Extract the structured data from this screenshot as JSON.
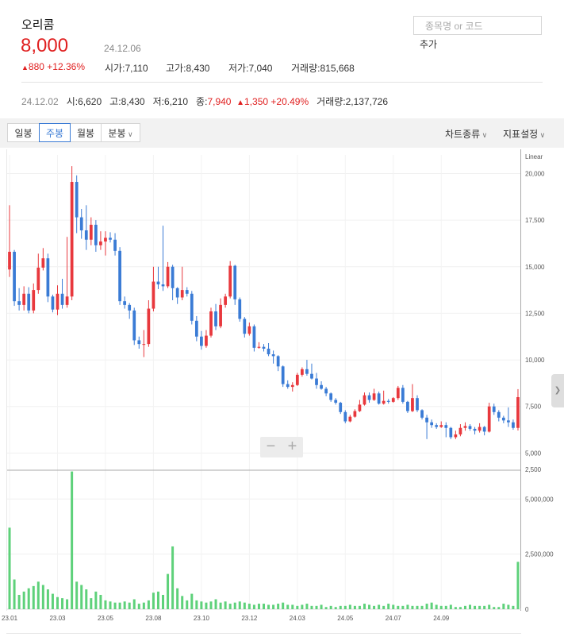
{
  "header": {
    "stock_name": "오리콤",
    "price": "8,000",
    "price_date": "24.12.06",
    "change_arrow": "▲",
    "change": "880 +12.36%",
    "stats": [
      {
        "label": "시가",
        "value": "7,110"
      },
      {
        "label": "고가",
        "value": "8,430"
      },
      {
        "label": "저가",
        "value": "7,040"
      },
      {
        "label": "거래량",
        "value": "815,668"
      }
    ]
  },
  "search": {
    "placeholder": "종목명 or 코드",
    "add_label": "추가"
  },
  "prev_day": {
    "date": "24.12.02",
    "open_label": "시",
    "open": "6,620",
    "high_label": "고",
    "high": "8,430",
    "low_label": "저",
    "low": "6,210",
    "close_label": "종",
    "close": "7,940",
    "change_arrow": "▲",
    "change": "1,350 +20.49%",
    "volume_label": "거래량",
    "volume": "2,137,726"
  },
  "toolbar": {
    "tabs": [
      "일봉",
      "주봉",
      "월봉",
      "분봉"
    ],
    "active_tab": "주봉",
    "chart_type": "차트종류",
    "indicator": "지표설정"
  },
  "zoom": {
    "minus": "−",
    "plus": "+"
  },
  "colors": {
    "up": "#e8383d",
    "down": "#3a7bd5",
    "volume": "#5ed17a",
    "accent": "#3a7bd5",
    "price_text": "#e02020"
  },
  "chart_data": {
    "type": "candlestick",
    "period": "weekly",
    "scale_label": "Linear",
    "price_axis": {
      "ticks": [
        5000,
        7500,
        10000,
        12500,
        15000,
        17500,
        20000
      ],
      "labels": [
        "5,000",
        "7,500",
        "10,000",
        "12,500",
        "15,000",
        "17,500",
        "20,000"
      ],
      "range": [
        4250,
        21000
      ]
    },
    "volume_axis": {
      "ticks": [
        0,
        2500000,
        5000000
      ],
      "labels": [
        "0",
        "2,500,000",
        "5,000,000"
      ],
      "top_label": "2,500",
      "range": [
        0,
        6200000
      ]
    },
    "x_labels": [
      "23.01",
      "23.03",
      "23.05",
      "23.08",
      "23.10",
      "23.12",
      "24.03",
      "24.05",
      "24.07",
      "24.09"
    ],
    "x_label_index": [
      0,
      10,
      20,
      30,
      40,
      50,
      60,
      70,
      80,
      90
    ],
    "candles": [
      [
        14850,
        15800,
        18300,
        14450
      ],
      [
        15800,
        13150,
        15900,
        12900
      ],
      [
        13150,
        12950,
        13850,
        12650
      ],
      [
        12950,
        13550,
        13950,
        12650
      ],
      [
        13550,
        12650,
        13900,
        12500
      ],
      [
        12650,
        13750,
        14100,
        12500
      ],
      [
        13750,
        14950,
        15700,
        13550
      ],
      [
        14950,
        15450,
        16000,
        14800
      ],
      [
        15450,
        13400,
        15700,
        13100
      ],
      [
        13400,
        12700,
        13500,
        12550
      ],
      [
        12700,
        13550,
        14000,
        12400
      ],
      [
        13550,
        12950,
        14350,
        12750
      ],
      [
        12950,
        13400,
        16600,
        12800
      ],
      [
        13400,
        19550,
        20400,
        13200
      ],
      [
        19550,
        17650,
        19900,
        16800
      ],
      [
        17650,
        16950,
        18100,
        16500
      ],
      [
        16950,
        16450,
        18300,
        15900
      ],
      [
        16450,
        17250,
        17650,
        16150
      ],
      [
        17250,
        16150,
        17500,
        15800
      ],
      [
        16150,
        16350,
        16900,
        15900
      ],
      [
        16350,
        16550,
        16900,
        15600
      ],
      [
        16550,
        16450,
        16850,
        16300
      ],
      [
        16450,
        15850,
        16800,
        15600
      ],
      [
        15850,
        13150,
        16050,
        12950
      ],
      [
        13150,
        12950,
        13400,
        12750
      ],
      [
        12950,
        12650,
        13050,
        12200
      ],
      [
        12650,
        11050,
        12800,
        10800
      ],
      [
        11050,
        10850,
        11250,
        10600
      ],
      [
        10850,
        10850,
        11600,
        10150
      ],
      [
        10850,
        12750,
        13200,
        10700
      ],
      [
        12750,
        14200,
        15000,
        12600
      ],
      [
        14200,
        14050,
        15000,
        13800
      ],
      [
        14050,
        13950,
        17200,
        13700
      ],
      [
        13950,
        15000,
        15250,
        13850
      ],
      [
        15000,
        13850,
        15100,
        13200
      ],
      [
        13850,
        13350,
        13900,
        13000
      ],
      [
        13350,
        13750,
        15000,
        13200
      ],
      [
        13750,
        13550,
        13900,
        13400
      ],
      [
        13550,
        12100,
        13700,
        11900
      ],
      [
        12100,
        11250,
        12350,
        11000
      ],
      [
        11250,
        10750,
        11550,
        10550
      ],
      [
        10750,
        11300,
        11600,
        10650
      ],
      [
        11300,
        12600,
        12800,
        11200
      ],
      [
        12600,
        11800,
        13000,
        11600
      ],
      [
        11800,
        12950,
        13300,
        11700
      ],
      [
        12950,
        13400,
        13550,
        12800
      ],
      [
        13400,
        15050,
        15300,
        13300
      ],
      [
        15050,
        13250,
        15100,
        12950
      ],
      [
        13250,
        12200,
        13350,
        12050
      ],
      [
        12200,
        11400,
        12300,
        11200
      ],
      [
        11400,
        11800,
        12000,
        11300
      ],
      [
        11800,
        10650,
        11900,
        10450
      ],
      [
        10650,
        10700,
        10950,
        10600
      ],
      [
        10700,
        10600,
        10850,
        10450
      ],
      [
        10600,
        10300,
        10900,
        10200
      ],
      [
        10300,
        10200,
        10500,
        9800
      ],
      [
        10200,
        9650,
        10250,
        9400
      ],
      [
        9650,
        8700,
        9700,
        8550
      ],
      [
        8700,
        8550,
        8900,
        8450
      ],
      [
        8550,
        8650,
        8800,
        8300
      ],
      [
        8650,
        9200,
        9300,
        8600
      ],
      [
        9200,
        9500,
        9600,
        9100
      ],
      [
        9500,
        9250,
        10000,
        9150
      ],
      [
        9250,
        9000,
        9800,
        8950
      ],
      [
        9000,
        8650,
        9300,
        8450
      ],
      [
        8650,
        8450,
        8850,
        8400
      ],
      [
        8450,
        8200,
        8550,
        8050
      ],
      [
        8200,
        7850,
        8250,
        7750
      ],
      [
        7850,
        7700,
        7950,
        7600
      ],
      [
        7700,
        7200,
        7750,
        7100
      ],
      [
        7200,
        6700,
        7300,
        6600
      ],
      [
        6700,
        6950,
        7050,
        6650
      ],
      [
        6950,
        7250,
        7350,
        6900
      ],
      [
        7250,
        7600,
        7850,
        7200
      ],
      [
        7600,
        8100,
        8250,
        7550
      ],
      [
        8100,
        7850,
        8250,
        7700
      ],
      [
        7850,
        8200,
        8450,
        7800
      ],
      [
        8200,
        7650,
        8300,
        7600
      ],
      [
        7650,
        7800,
        8350,
        7600
      ],
      [
        7800,
        7750,
        7900,
        7650
      ],
      [
        7750,
        7950,
        8000,
        7700
      ],
      [
        7950,
        8500,
        8600,
        7850
      ],
      [
        8500,
        7750,
        8650,
        7650
      ],
      [
        7750,
        7250,
        7800,
        7150
      ],
      [
        7250,
        7950,
        8700,
        7200
      ],
      [
        7950,
        7300,
        8100,
        7200
      ],
      [
        7300,
        6900,
        7350,
        6800
      ],
      [
        6900,
        6650,
        7050,
        5750
      ],
      [
        6650,
        6500,
        6800,
        6350
      ],
      [
        6500,
        6400,
        6600,
        6300
      ],
      [
        6400,
        6500,
        6700,
        6350
      ],
      [
        6500,
        6350,
        6650,
        5850
      ],
      [
        6350,
        5850,
        6400,
        5750
      ],
      [
        5850,
        6000,
        6200,
        5750
      ],
      [
        6000,
        6350,
        6550,
        5900
      ],
      [
        6350,
        6450,
        6650,
        6200
      ],
      [
        6450,
        6300,
        6550,
        6200
      ],
      [
        6300,
        6200,
        6400,
        6000
      ],
      [
        6200,
        6400,
        6600,
        6100
      ],
      [
        6400,
        6150,
        6450,
        5950
      ],
      [
        6150,
        7500,
        7700,
        6100
      ],
      [
        7500,
        7200,
        7650,
        7050
      ],
      [
        7200,
        6900,
        7300,
        6700
      ],
      [
        6900,
        6750,
        7000,
        6600
      ],
      [
        6750,
        6650,
        7450,
        6400
      ],
      [
        6650,
        6350,
        6800,
        6250
      ],
      [
        6350,
        8000,
        8430,
        6210
      ]
    ],
    "volume": [
      3700000,
      1350000,
      650000,
      800000,
      950000,
      1050000,
      1250000,
      1100000,
      900000,
      700000,
      550000,
      500000,
      450000,
      6250000,
      1250000,
      1100000,
      900000,
      500000,
      800000,
      650000,
      400000,
      350000,
      300000,
      300000,
      350000,
      300000,
      450000,
      250000,
      300000,
      400000,
      750000,
      800000,
      650000,
      1600000,
      2850000,
      950000,
      600000,
      400000,
      700000,
      400000,
      350000,
      300000,
      350000,
      450000,
      300000,
      350000,
      250000,
      300000,
      350000,
      300000,
      250000,
      200000,
      250000,
      250000,
      200000,
      200000,
      250000,
      300000,
      200000,
      200000,
      150000,
      200000,
      250000,
      150000,
      150000,
      200000,
      100000,
      150000,
      100000,
      150000,
      150000,
      200000,
      150000,
      150000,
      250000,
      200000,
      150000,
      200000,
      150000,
      250000,
      200000,
      150000,
      150000,
      200000,
      150000,
      150000,
      150000,
      250000,
      300000,
      200000,
      150000,
      150000,
      200000,
      100000,
      100000,
      150000,
      200000,
      150000,
      150000,
      150000,
      200000,
      100000,
      100000,
      250000,
      200000,
      150000,
      2150000
    ]
  }
}
